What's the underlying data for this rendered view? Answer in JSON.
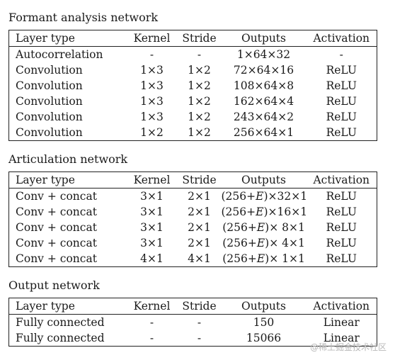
{
  "sections": [
    {
      "title": "Formant analysis network",
      "headers": [
        "Layer type",
        "Kernel",
        "Stride",
        "Outputs",
        "Activation"
      ],
      "rows": [
        [
          "Autocorrelation",
          "-",
          "-",
          "1×64×32",
          "-"
        ],
        [
          "Convolution",
          "1×3",
          "1×2",
          "72×64×16",
          "ReLU"
        ],
        [
          "Convolution",
          "1×3",
          "1×2",
          "108×64×8",
          "ReLU"
        ],
        [
          "Convolution",
          "1×3",
          "1×2",
          "162×64×4",
          "ReLU"
        ],
        [
          "Convolution",
          "1×3",
          "1×2",
          "243×64×2",
          "ReLU"
        ],
        [
          "Convolution",
          "1×2",
          "1×2",
          "256×64×1",
          "ReLU"
        ]
      ]
    },
    {
      "title": "Articulation network",
      "headers": [
        "Layer type",
        "Kernel",
        "Stride",
        "Outputs",
        "Activation"
      ],
      "rows": [
        [
          "Conv + concat",
          "3×1",
          "2×1",
          "(256+E)×32×1",
          "ReLU"
        ],
        [
          "Conv + concat",
          "3×1",
          "2×1",
          "(256+E)×16×1",
          "ReLU"
        ],
        [
          "Conv + concat",
          "3×1",
          "2×1",
          "(256+E)× 8×1",
          "ReLU"
        ],
        [
          "Conv + concat",
          "3×1",
          "2×1",
          "(256+E)× 4×1",
          "ReLU"
        ],
        [
          "Conv + concat",
          "4×1",
          "4×1",
          "(256+E)× 1×1",
          "ReLU"
        ]
      ]
    },
    {
      "title": "Output network",
      "headers": [
        "Layer type",
        "Kernel",
        "Stride",
        "Outputs",
        "Activation"
      ],
      "rows": [
        [
          "Fully connected",
          "-",
          "-",
          "150",
          "Linear"
        ],
        [
          "Fully connected",
          "-",
          "-",
          "15066",
          "Linear"
        ]
      ]
    }
  ],
  "watermark": "@稀土掘金技术社区"
}
